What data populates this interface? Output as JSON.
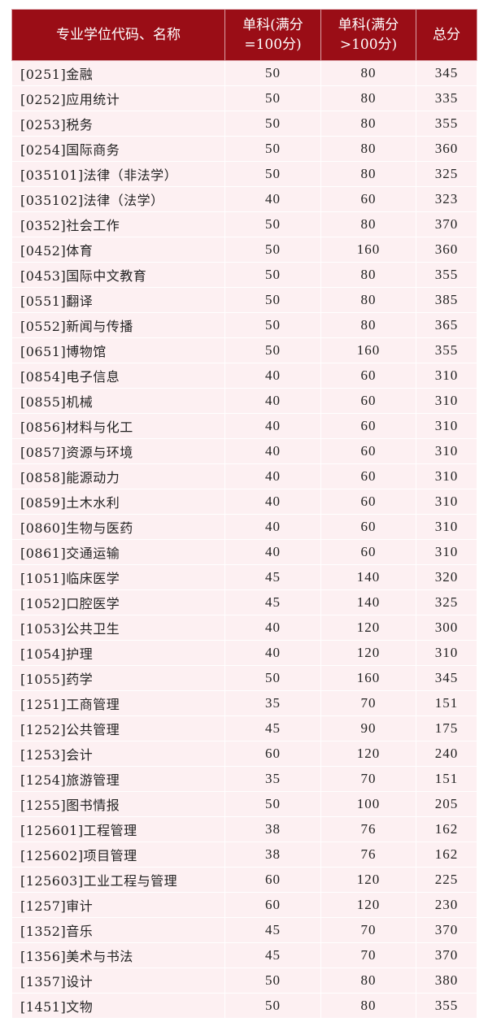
{
  "header": {
    "name": "专业学位代码、名称",
    "single_100": "单科(满分=100分)",
    "single_gt100": "单科(满分>100分)",
    "total": "总分"
  },
  "rows": [
    {
      "name": "[0251]金融",
      "s100": "50",
      "sgt": "80",
      "total": "345"
    },
    {
      "name": "[0252]应用统计",
      "s100": "50",
      "sgt": "80",
      "total": "335"
    },
    {
      "name": "[0253]税务",
      "s100": "50",
      "sgt": "80",
      "total": "355"
    },
    {
      "name": "[0254]国际商务",
      "s100": "50",
      "sgt": "80",
      "total": "360"
    },
    {
      "name": "[035101]法律（非法学）",
      "s100": "50",
      "sgt": "80",
      "total": "325"
    },
    {
      "name": "[035102]法律（法学）",
      "s100": "40",
      "sgt": "60",
      "total": "323"
    },
    {
      "name": "[0352]社会工作",
      "s100": "50",
      "sgt": "80",
      "total": "370"
    },
    {
      "name": "[0452]体育",
      "s100": "50",
      "sgt": "160",
      "total": "360"
    },
    {
      "name": "[0453]国际中文教育",
      "s100": "50",
      "sgt": "80",
      "total": "355"
    },
    {
      "name": "[0551]翻译",
      "s100": "50",
      "sgt": "80",
      "total": "385"
    },
    {
      "name": "[0552]新闻与传播",
      "s100": "50",
      "sgt": "80",
      "total": "365"
    },
    {
      "name": "[0651]博物馆",
      "s100": "50",
      "sgt": "160",
      "total": "355"
    },
    {
      "name": "[0854]电子信息",
      "s100": "40",
      "sgt": "60",
      "total": "310"
    },
    {
      "name": "[0855]机械",
      "s100": "40",
      "sgt": "60",
      "total": "310"
    },
    {
      "name": "[0856]材料与化工",
      "s100": "40",
      "sgt": "60",
      "total": "310"
    },
    {
      "name": "[0857]资源与环境",
      "s100": "40",
      "sgt": "60",
      "total": "310"
    },
    {
      "name": "[0858]能源动力",
      "s100": "40",
      "sgt": "60",
      "total": "310"
    },
    {
      "name": "[0859]土木水利",
      "s100": "40",
      "sgt": "60",
      "total": "310"
    },
    {
      "name": "[0860]生物与医药",
      "s100": "40",
      "sgt": "60",
      "total": "310"
    },
    {
      "name": "[0861]交通运输",
      "s100": "40",
      "sgt": "60",
      "total": "310"
    },
    {
      "name": "[1051]临床医学",
      "s100": "45",
      "sgt": "140",
      "total": "320"
    },
    {
      "name": "[1052]口腔医学",
      "s100": "45",
      "sgt": "140",
      "total": "325"
    },
    {
      "name": "[1053]公共卫生",
      "s100": "40",
      "sgt": "120",
      "total": "300"
    },
    {
      "name": "[1054]护理",
      "s100": "40",
      "sgt": "120",
      "total": "310"
    },
    {
      "name": "[1055]药学",
      "s100": "50",
      "sgt": "160",
      "total": "345"
    },
    {
      "name": "[1251]工商管理",
      "s100": "35",
      "sgt": "70",
      "total": "151"
    },
    {
      "name": "[1252]公共管理",
      "s100": "45",
      "sgt": "90",
      "total": "175"
    },
    {
      "name": "[1253]会计",
      "s100": "60",
      "sgt": "120",
      "total": "240"
    },
    {
      "name": "[1254]旅游管理",
      "s100": "35",
      "sgt": "70",
      "total": "151"
    },
    {
      "name": "[1255]图书情报",
      "s100": "50",
      "sgt": "100",
      "total": "205"
    },
    {
      "name": "[125601]工程管理",
      "s100": "38",
      "sgt": "76",
      "total": "162"
    },
    {
      "name": "[125602]项目管理",
      "s100": "38",
      "sgt": "76",
      "total": "162"
    },
    {
      "name": "[125603]工业工程与管理",
      "s100": "60",
      "sgt": "120",
      "total": "225"
    },
    {
      "name": "[1257]审计",
      "s100": "60",
      "sgt": "120",
      "total": "230"
    },
    {
      "name": "[1352]音乐",
      "s100": "45",
      "sgt": "70",
      "total": "370"
    },
    {
      "name": "[1356]美术与书法",
      "s100": "45",
      "sgt": "70",
      "total": "370"
    },
    {
      "name": "[1357]设计",
      "s100": "50",
      "sgt": "80",
      "total": "380"
    },
    {
      "name": "[1451]文物",
      "s100": "50",
      "sgt": "80",
      "total": "355"
    }
  ]
}
